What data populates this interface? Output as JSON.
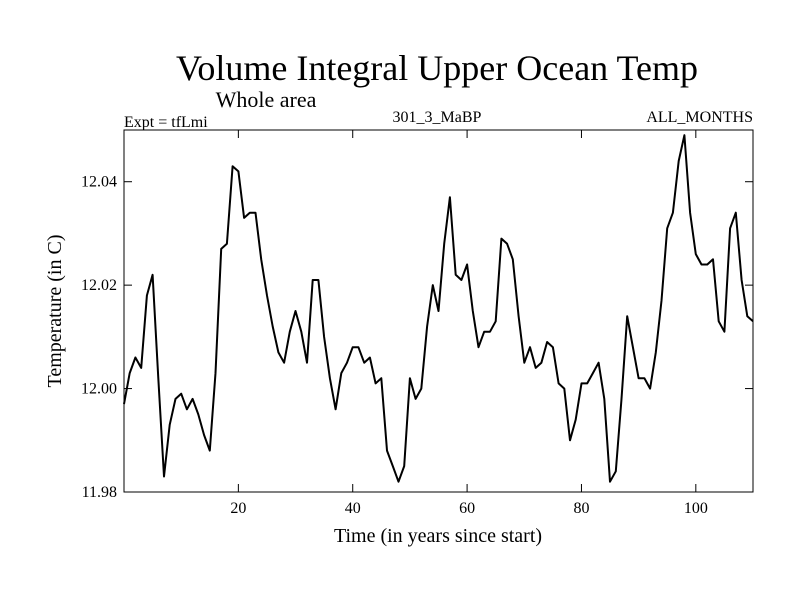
{
  "chart_data": {
    "type": "line",
    "title": "Volume Integral Upper Ocean Temp",
    "subtitle": "Whole area",
    "left_label": "Expt = tfLmi",
    "center_label": "301_3_MaBP",
    "right_label": "ALL_MONTHS",
    "xlabel": "Time (in years since start)",
    "ylabel": "Temperature (in C)",
    "xlim": [
      0,
      110
    ],
    "ylim": [
      11.98,
      12.05
    ],
    "x_ticks": [
      20,
      40,
      60,
      80,
      100
    ],
    "y_ticks": [
      11.98,
      12.0,
      12.02,
      12.04
    ],
    "x_tick_labels": [
      "20",
      "40",
      "60",
      "80",
      "100"
    ],
    "y_tick_labels": [
      "11.98",
      "12.00",
      "12.02",
      "12.04"
    ],
    "series": [
      {
        "name": "temperature",
        "color": "#000000",
        "x": [
          0,
          1,
          2,
          3,
          4,
          5,
          6,
          7,
          8,
          9,
          10,
          11,
          12,
          13,
          14,
          15,
          16,
          17,
          18,
          19,
          20,
          21,
          22,
          23,
          24,
          25,
          26,
          27,
          28,
          29,
          30,
          31,
          32,
          33,
          34,
          35,
          36,
          37,
          38,
          39,
          40,
          41,
          42,
          43,
          44,
          45,
          46,
          47,
          48,
          49,
          50,
          51,
          52,
          53,
          54,
          55,
          56,
          57,
          58,
          59,
          60,
          61,
          62,
          63,
          64,
          65,
          66,
          67,
          68,
          69,
          70,
          71,
          72,
          73,
          74,
          75,
          76,
          77,
          78,
          79,
          80,
          81,
          82,
          83,
          84,
          85,
          86,
          87,
          88,
          89,
          90,
          91,
          92,
          93,
          94,
          95,
          96,
          97,
          98,
          99,
          100,
          101,
          102,
          103,
          104,
          105,
          106,
          107,
          108,
          109,
          110
        ],
        "values": [
          11.997,
          12.003,
          12.006,
          12.004,
          12.018,
          12.022,
          12.002,
          11.983,
          11.993,
          11.998,
          11.999,
          11.996,
          11.998,
          11.995,
          11.991,
          11.988,
          12.003,
          12.027,
          12.028,
          12.043,
          12.042,
          12.033,
          12.034,
          12.034,
          12.025,
          12.018,
          12.012,
          12.007,
          12.005,
          12.011,
          12.015,
          12.011,
          12.005,
          12.021,
          12.021,
          12.01,
          12.002,
          11.996,
          12.003,
          12.005,
          12.008,
          12.008,
          12.005,
          12.006,
          12.001,
          12.002,
          11.988,
          11.985,
          11.982,
          11.985,
          12.002,
          11.998,
          12.0,
          12.012,
          12.02,
          12.015,
          12.028,
          12.037,
          12.022,
          12.021,
          12.024,
          12.015,
          12.008,
          12.011,
          12.011,
          12.013,
          12.029,
          12.028,
          12.025,
          12.014,
          12.005,
          12.008,
          12.004,
          12.005,
          12.009,
          12.008,
          12.001,
          12.0,
          11.99,
          11.994,
          12.001,
          12.001,
          12.003,
          12.005,
          11.998,
          11.982,
          11.984,
          11.998,
          12.014,
          12.008,
          12.002,
          12.002,
          12.0,
          12.007,
          12.017,
          12.031,
          12.034,
          12.044,
          12.049,
          12.034,
          12.026,
          12.024,
          12.024,
          12.025,
          12.013,
          12.011,
          12.031,
          12.034,
          12.021,
          12.014,
          12.013
        ]
      }
    ]
  }
}
